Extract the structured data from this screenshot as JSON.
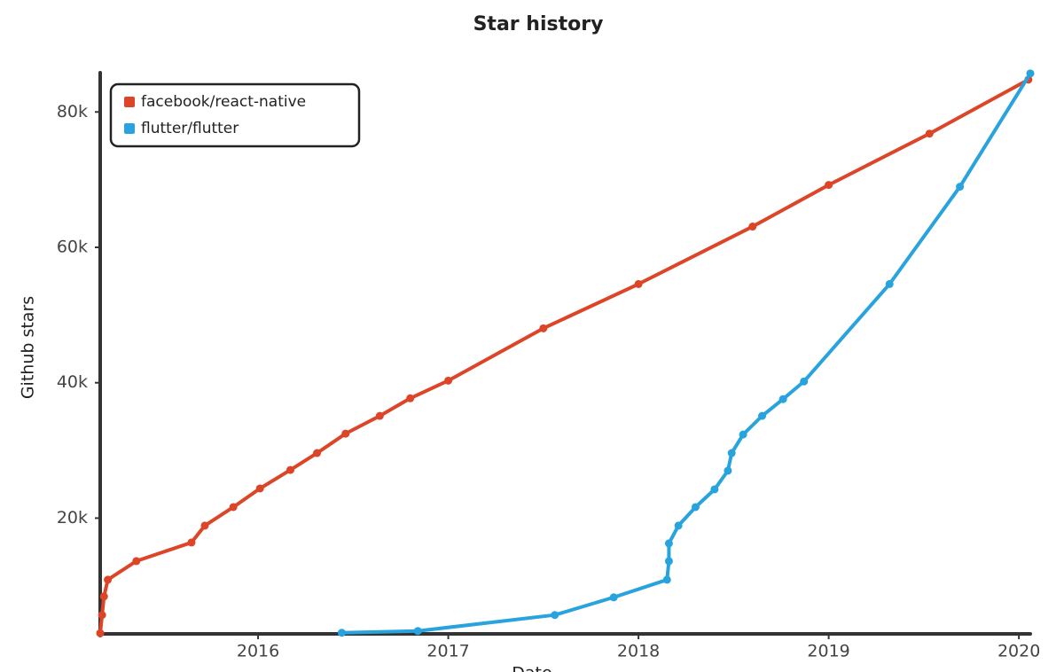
{
  "chart_data": {
    "type": "line",
    "title": "Star history",
    "x_label": "Date",
    "y_label": "Github stars",
    "xlim": [
      2015.17,
      2020.06
    ],
    "xticks": [
      2016,
      2017,
      2018,
      2019,
      2020
    ],
    "ylim": [
      2900,
      85800
    ],
    "yticks": [
      {
        "value": 20000,
        "label": "20k"
      },
      {
        "value": 40000,
        "label": "40k"
      },
      {
        "value": 60000,
        "label": "60k"
      },
      {
        "value": 80000,
        "label": "80k"
      }
    ],
    "legend": "top-left",
    "series": [
      {
        "name": "facebook/react-native",
        "color": "#dd4528",
        "x": [
          2015.17,
          2015.18,
          2015.19,
          2015.21,
          2015.36,
          2015.65,
          2015.72,
          2015.87,
          2016.01,
          2016.17,
          2016.31,
          2016.46,
          2016.64,
          2016.8,
          2017.0,
          2017.5,
          2018.0,
          2018.6,
          2019.0,
          2019.53,
          2020.05
        ],
        "values": [
          3000,
          5690,
          8430,
          10900,
          13650,
          16400,
          18890,
          21630,
          24380,
          27120,
          29610,
          32480,
          35100,
          37700,
          40310,
          48040,
          54580,
          63070,
          69220,
          76800,
          84770
        ]
      },
      {
        "name": "flutter/flutter",
        "color": "#28a3dd",
        "x": [
          2016.44,
          2016.84,
          2017.56,
          2017.87,
          2018.15,
          2018.16,
          2018.16,
          2018.21,
          2018.3,
          2018.4,
          2018.47,
          2018.49,
          2018.55,
          2018.65,
          2018.76,
          2018.87,
          2019.32,
          2019.69,
          2020.06
        ],
        "values": [
          3070,
          3330,
          5690,
          8300,
          10900,
          13650,
          16270,
          18890,
          21630,
          24250,
          27000,
          29610,
          32350,
          35100,
          37580,
          40190,
          54580,
          68960,
          85690
        ]
      }
    ]
  }
}
